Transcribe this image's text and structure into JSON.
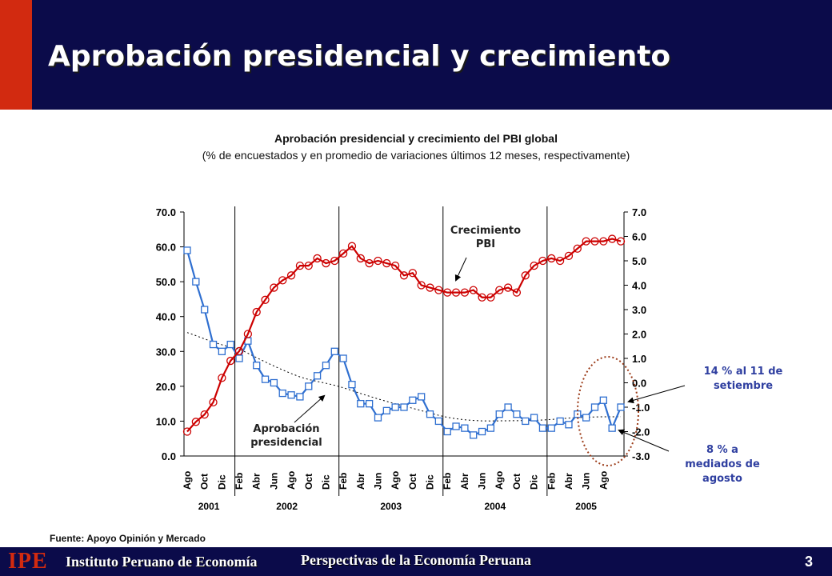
{
  "header": {
    "title": "Aprobación presidencial y crecimiento"
  },
  "chart_header": {
    "title": "Aprobación presidencial y crecimiento del PBI global",
    "subtitle": "(% de encuestados y en promedio de variaciones últimos 12 meses, respectivamente)"
  },
  "source": "Fuente: Apoyo Opinión y Mercado",
  "footer": {
    "logo": "IPE",
    "institute": "Instituto Peruano de Economía",
    "center": "Perspectivas de la Economía Peruana",
    "page": "3"
  },
  "colors": {
    "header_bg": "#0b0b4a",
    "accent": "#d22a10",
    "pbi": "#cc0000",
    "approval": "#2f6fd0",
    "annotation": "#2f3fa0",
    "ellipse": "#9b3b18"
  },
  "chart_data": {
    "type": "line",
    "left_axis": {
      "min": 0,
      "max": 70,
      "ticks": [
        "0.0",
        "10.0",
        "20.0",
        "30.0",
        "40.0",
        "50.0",
        "60.0",
        "70.0"
      ]
    },
    "right_axis": {
      "min": -3,
      "max": 7,
      "ticks": [
        "-3.0",
        "-2.0",
        "-1.0",
        "0.0",
        "1.0",
        "2.0",
        "3.0",
        "4.0",
        "5.0",
        "6.0",
        "7.0"
      ]
    },
    "x_labels": [
      "Ago",
      "Oct",
      "Dic",
      "Feb",
      "Abr",
      "Jun",
      "Ago",
      "Oct",
      "Dic",
      "Feb",
      "Abr",
      "Jun",
      "Ago",
      "Oct",
      "Dic",
      "Feb",
      "Abr",
      "Jun",
      "Ago",
      "Oct",
      "Dic",
      "Feb",
      "Abr",
      "Jun",
      "Ago"
    ],
    "years": [
      "2001",
      "2002",
      "2003",
      "2004",
      "2005"
    ],
    "series": [
      {
        "name": "Aprobación presidencial",
        "axis": "left",
        "marker": "square",
        "values": [
          59,
          50,
          42,
          32,
          30,
          32,
          28,
          33,
          26,
          22,
          21,
          18,
          17.5,
          17,
          20,
          23,
          26,
          30,
          28,
          20.5,
          15,
          15,
          11,
          13,
          14,
          14,
          16,
          17,
          12,
          10,
          7,
          8.5,
          8,
          6,
          7,
          8,
          12,
          14,
          12,
          10,
          11,
          8,
          8,
          10,
          9,
          12,
          11,
          14,
          16,
          8,
          14
        ]
      },
      {
        "name": "Crecimiento PBI",
        "axis": "right",
        "marker": "circle",
        "values": [
          -2.0,
          -1.6,
          -1.3,
          -0.8,
          0.2,
          0.9,
          1.3,
          2.0,
          2.9,
          3.4,
          3.9,
          4.2,
          4.4,
          4.8,
          4.8,
          5.1,
          4.9,
          5.0,
          5.3,
          5.6,
          5.1,
          4.9,
          5.0,
          4.9,
          4.8,
          4.4,
          4.5,
          4.0,
          3.9,
          3.8,
          3.7,
          3.7,
          3.7,
          3.8,
          3.5,
          3.5,
          3.8,
          3.9,
          3.7,
          4.4,
          4.8,
          5.0,
          5.1,
          5.0,
          5.2,
          5.5,
          5.8,
          5.8,
          5.8,
          5.9,
          5.8
        ]
      }
    ],
    "annotations": {
      "pbi": "Crecimiento\nPBI",
      "approval": "Aprobación\npresidencial",
      "latest": "14 %  al 11 de\nsetiembre",
      "mid_august": "8 % a\nmediados de\nagosto"
    }
  }
}
